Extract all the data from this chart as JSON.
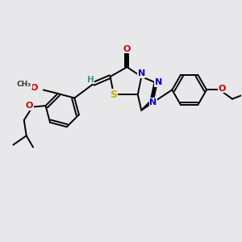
{
  "background_color": "#e8e8ea",
  "fig_size": [
    3.0,
    3.0
  ],
  "dpi": 100,
  "atom_colors": {
    "C": "#000000",
    "N": "#0000cc",
    "O": "#cc0000",
    "S": "#b8b800",
    "H": "#4a9090"
  },
  "bond_color": "#000000",
  "bond_width": 1.4,
  "font_size_atom": 8.0,
  "font_size_small": 6.5
}
